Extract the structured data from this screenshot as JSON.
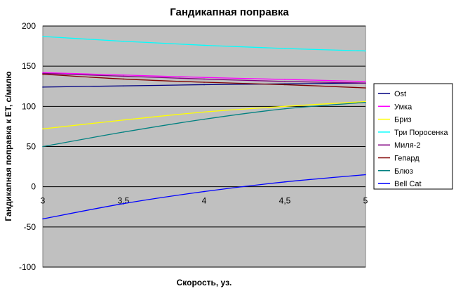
{
  "chart_data": {
    "type": "line",
    "title": "Гандикапная поправка",
    "xlabel": "Скорость, уз.",
    "ylabel": "Гандикапная поправка к ЕТ, с/милю",
    "xlim": [
      3,
      5
    ],
    "ylim": [
      -100,
      200
    ],
    "x_ticks": [
      3,
      3.5,
      4,
      4.5,
      5
    ],
    "x_tick_labels": [
      "3",
      "3,5",
      "4",
      "4,5",
      "5"
    ],
    "y_ticks": [
      -100,
      -50,
      0,
      50,
      100,
      150,
      200
    ],
    "y_tick_labels": [
      "-100",
      "-50",
      "0",
      "50",
      "100",
      "150",
      "200"
    ],
    "grid": "horizontal",
    "plot_background": "#c0c0c0",
    "legend_position": "right",
    "x": [
      3,
      3.5,
      4,
      4.5,
      5
    ],
    "series": [
      {
        "name": "Ost",
        "color": "#000080",
        "values": [
          124,
          125.5,
          127,
          128,
          129
        ]
      },
      {
        "name": "Умка",
        "color": "#ff00ff",
        "values": [
          142,
          139,
          136,
          133.5,
          131
        ]
      },
      {
        "name": "Бриз",
        "color": "#ffff00",
        "values": [
          72,
          83,
          93,
          100,
          106
        ]
      },
      {
        "name": "Три Поросенка",
        "color": "#00ffff",
        "values": [
          187,
          181,
          176,
          172,
          169
        ]
      },
      {
        "name": "Миля-2",
        "color": "#800080",
        "values": [
          141,
          137.5,
          134,
          131,
          129
        ]
      },
      {
        "name": "Гепард",
        "color": "#800000",
        "values": [
          140,
          134,
          130,
          127,
          123
        ]
      },
      {
        "name": "Блюз",
        "color": "#008080",
        "values": [
          50,
          68,
          84,
          97,
          105
        ]
      },
      {
        "name": "Bell Cat",
        "color": "#0000ff",
        "values": [
          -40,
          -21,
          -6,
          6,
          15
        ]
      }
    ]
  }
}
